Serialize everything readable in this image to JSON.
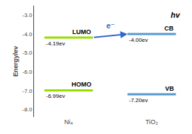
{
  "chart_data": {
    "type": "levels",
    "y_label": "Energy/ev",
    "ylim": [
      -8.4,
      -2.5
    ],
    "yticks": [
      {
        "value": -3,
        "label": "-3.0"
      },
      {
        "value": -4,
        "label": "-4.0"
      },
      {
        "value": -5,
        "label": "-5.0"
      },
      {
        "value": -6,
        "label": "-6.0"
      },
      {
        "value": -7,
        "label": "-7.0"
      },
      {
        "value": -8,
        "label": "-8.0"
      }
    ],
    "grid": false,
    "categories": [
      "Ni₄",
      "TiO₂"
    ],
    "series": [
      {
        "name": "Ni₄",
        "levels": [
          "LUMO",
          "HOMO"
        ],
        "values": [
          -4.19,
          -6.99
        ],
        "value_labels": [
          "-4.19ev",
          "-6.99ev"
        ],
        "color": "#99dd00"
      },
      {
        "name": "TiO₂",
        "levels": [
          "CB",
          "VB"
        ],
        "values": [
          -4.0,
          -7.2
        ],
        "value_labels": [
          "-4.00ev",
          "-7.20ev"
        ],
        "color": "#5599cc"
      }
    ],
    "transfer": {
      "from": "LUMO",
      "to": "CB",
      "label": "e⁻",
      "color": "#3366cc"
    },
    "annotations": [
      {
        "text": "hv"
      }
    ]
  }
}
